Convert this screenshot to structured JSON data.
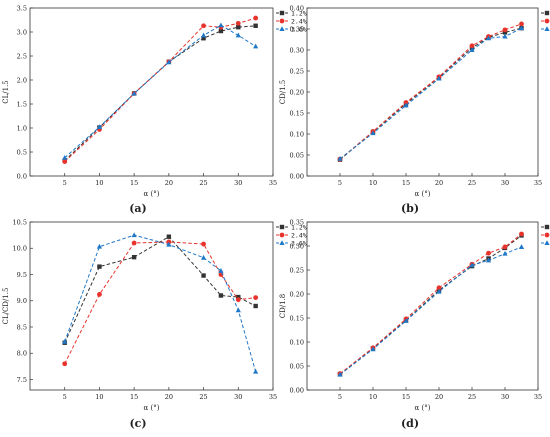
{
  "colors": {
    "s1": "#333333",
    "s2": "#e8322c",
    "s3": "#1f77c8",
    "axis": "#333333"
  },
  "chart_data": [
    {
      "type": "line",
      "panel_label": "(a)",
      "xlabel": "α (°)",
      "ylabel": "CL/1.5",
      "xlim": [
        0,
        35
      ],
      "ylim": [
        0,
        3.5
      ],
      "xticks": [
        5,
        10,
        15,
        20,
        25,
        30,
        35
      ],
      "yticks": [
        0.0,
        0.5,
        1.0,
        1.5,
        2.0,
        2.5,
        3.0,
        3.5
      ],
      "ytick_labels": [
        "0.0",
        "0.5",
        "1.0",
        "1.5",
        "2.0",
        "2.5",
        "3.0",
        "3.5"
      ],
      "legend": "top-right",
      "x": [
        5,
        10,
        15,
        20,
        25,
        27.5,
        30,
        32.5
      ],
      "series": [
        {
          "name": "1.2%",
          "marker": "square",
          "values": [
            0.32,
            1.01,
            1.72,
            2.38,
            2.87,
            3.02,
            3.1,
            3.13
          ]
        },
        {
          "name": "2.4%",
          "marker": "circle",
          "values": [
            0.3,
            0.97,
            1.72,
            2.38,
            3.13,
            3.1,
            3.18,
            3.29
          ]
        },
        {
          "name": "3.6%",
          "marker": "triangle",
          "values": [
            0.38,
            1.02,
            1.72,
            2.37,
            2.93,
            3.14,
            2.93,
            2.7
          ]
        }
      ]
    },
    {
      "type": "line",
      "panel_label": "(b)",
      "xlabel": "α (°)",
      "ylabel": "CD/1.5",
      "xlim": [
        0,
        35
      ],
      "ylim": [
        0,
        0.4
      ],
      "xticks": [
        5,
        10,
        15,
        20,
        25,
        30,
        35
      ],
      "yticks": [
        0.0,
        0.05,
        0.1,
        0.15,
        0.2,
        0.25,
        0.3,
        0.35,
        0.4
      ],
      "ytick_labels": [
        "0.00",
        "0.05",
        "0.10",
        "0.15",
        "0.20",
        "0.25",
        "0.30",
        "0.35",
        "0.40"
      ],
      "legend": "top-right",
      "x": [
        5,
        10,
        15,
        20,
        25,
        27.5,
        30,
        32.5
      ],
      "series": [
        {
          "name": "1.2%",
          "marker": "square",
          "values": [
            0.039,
            0.105,
            0.172,
            0.235,
            0.305,
            0.33,
            0.342,
            0.352
          ]
        },
        {
          "name": "2.4%",
          "marker": "circle",
          "values": [
            0.04,
            0.106,
            0.175,
            0.236,
            0.31,
            0.332,
            0.348,
            0.362
          ]
        },
        {
          "name": "3.6%",
          "marker": "triangle",
          "values": [
            0.041,
            0.102,
            0.168,
            0.232,
            0.3,
            0.328,
            0.332,
            0.352
          ]
        }
      ]
    },
    {
      "type": "line",
      "panel_label": "(c)",
      "xlabel": "α (°)",
      "ylabel": "CL/CD/1.5",
      "xlim": [
        0,
        35
      ],
      "ylim": [
        7.3,
        10.5
      ],
      "xticks": [
        5,
        10,
        15,
        20,
        25,
        30,
        35
      ],
      "yticks": [
        7.5,
        8.0,
        8.5,
        9.0,
        9.5,
        10.0,
        10.5
      ],
      "ytick_labels": [
        "7.5",
        "8.0",
        "8.5",
        "9.0",
        "9.5",
        "10.0",
        "10.5"
      ],
      "legend": "top-right",
      "x": [
        5,
        10,
        15,
        20,
        25,
        27.5,
        30,
        32.5
      ],
      "series": [
        {
          "name": "1.2%",
          "marker": "square",
          "values": [
            8.2,
            9.65,
            9.83,
            10.22,
            9.48,
            9.1,
            9.07,
            8.9
          ]
        },
        {
          "name": "2.4%",
          "marker": "circle",
          "values": [
            7.8,
            9.12,
            10.1,
            10.12,
            10.08,
            9.5,
            9.02,
            9.06
          ]
        },
        {
          "name": "3.6%",
          "marker": "triangle",
          "values": [
            8.22,
            10.03,
            10.25,
            10.07,
            9.82,
            9.57,
            8.82,
            7.65
          ]
        }
      ]
    },
    {
      "type": "line",
      "panel_label": "(d)",
      "xlabel": "α (°)",
      "ylabel": "CD/1.8",
      "xlim": [
        0,
        35
      ],
      "ylim": [
        0,
        0.35
      ],
      "xticks": [
        5,
        10,
        15,
        20,
        25,
        30,
        35
      ],
      "yticks": [
        0.0,
        0.05,
        0.1,
        0.15,
        0.2,
        0.25,
        0.3,
        0.35
      ],
      "ytick_labels": [
        "0.00",
        "0.05",
        "0.10",
        "0.15",
        "0.20",
        "0.25",
        "0.30",
        "0.35"
      ],
      "legend": "top-right",
      "x": [
        5,
        10,
        15,
        20,
        25,
        27.5,
        30,
        32.5
      ],
      "series": [
        {
          "name": "1.2%",
          "marker": "square",
          "values": [
            0.033,
            0.087,
            0.145,
            0.208,
            0.258,
            0.274,
            0.296,
            0.322
          ]
        },
        {
          "name": "2.4%",
          "marker": "circle",
          "values": [
            0.034,
            0.088,
            0.148,
            0.213,
            0.262,
            0.285,
            0.298,
            0.325
          ]
        },
        {
          "name": "3.6%",
          "marker": "triangle",
          "values": [
            0.032,
            0.085,
            0.144,
            0.205,
            0.26,
            0.27,
            0.284,
            0.298
          ]
        }
      ]
    }
  ]
}
